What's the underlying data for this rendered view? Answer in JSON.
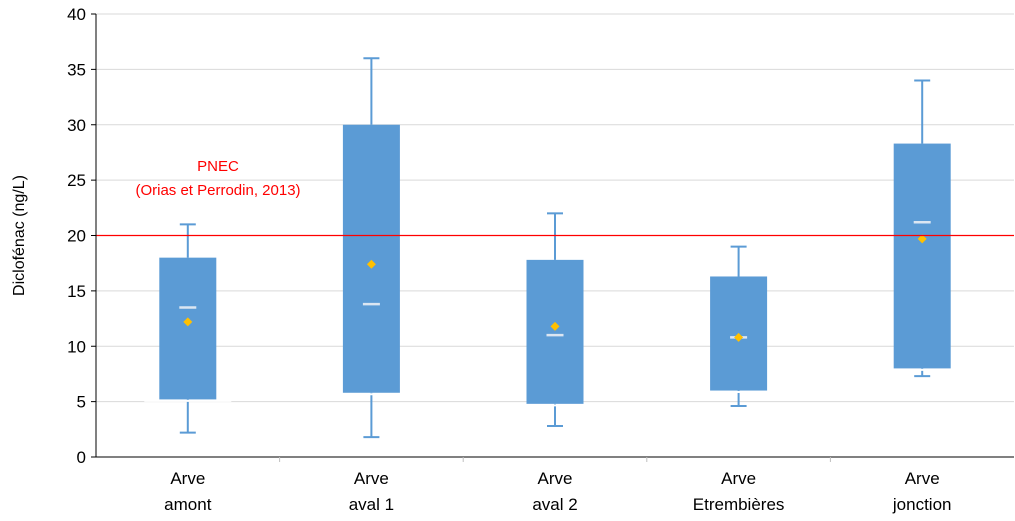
{
  "chart_data": {
    "type": "box",
    "ylabel": "Diclofénac (ng/L)",
    "ylim": [
      0,
      40
    ],
    "yticks": [
      0,
      5,
      10,
      15,
      20,
      25,
      30,
      35,
      40
    ],
    "grid": "horizontal",
    "categories": [
      {
        "line1": "Arve",
        "line2": "amont"
      },
      {
        "line1": "Arve",
        "line2": "aval 1"
      },
      {
        "line1": "Arve",
        "line2": "aval 2"
      },
      {
        "line1": "Arve",
        "line2": "Etrembières"
      },
      {
        "line1": "Arve",
        "line2": "jonction"
      }
    ],
    "boxes": [
      {
        "min": 2.2,
        "q1": 5.2,
        "median": 13.5,
        "q3": 18.0,
        "max": 21.0,
        "mean": 12.2
      },
      {
        "min": 1.8,
        "q1": 5.8,
        "median": 13.8,
        "q3": 30.0,
        "max": 36.0,
        "mean": 17.4
      },
      {
        "min": 2.8,
        "q1": 4.8,
        "median": 11.0,
        "q3": 17.8,
        "max": 22.0,
        "mean": 11.8
      },
      {
        "min": 4.6,
        "q1": 6.0,
        "median": 10.8,
        "q3": 16.3,
        "max": 19.0,
        "mean": 10.8
      },
      {
        "min": 7.3,
        "q1": 8.0,
        "median": 21.2,
        "q3": 28.3,
        "max": 34.0,
        "mean": 19.7
      }
    ],
    "reference_line": {
      "value": 20,
      "label_line1": "PNEC",
      "label_line2": "(Orias et Perrodin, 2013)",
      "color": "#ff0000"
    },
    "colors": {
      "box": "#5b9bd5",
      "whisker": "#5b9bd5",
      "median": "#dbe6f2",
      "mean": "#ffc000",
      "grid": "#d9d9d9",
      "axis": "#000000"
    }
  }
}
